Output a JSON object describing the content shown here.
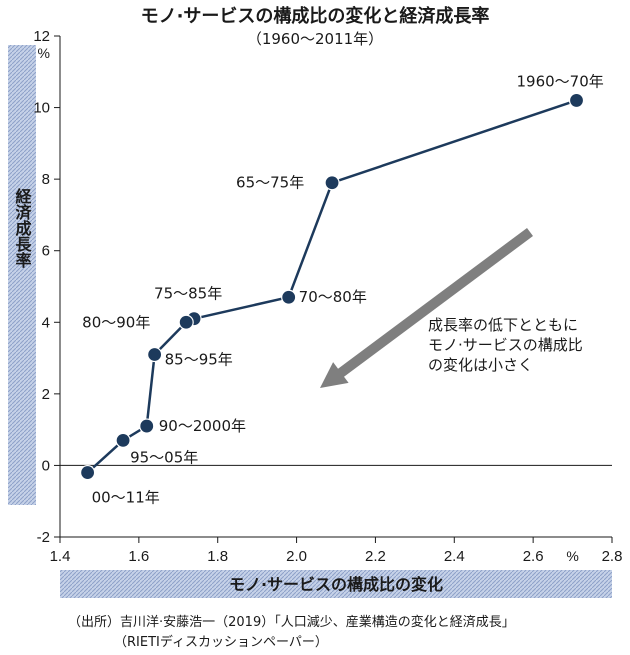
{
  "title": "モノ·サービスの構成比の変化と経済成長率",
  "subtitle": "（1960〜2011年）",
  "colors": {
    "marker": "#1d3a5c",
    "line": "#1d3a5c",
    "arrow": "#7f7f7f",
    "band": "#aab9d6"
  },
  "chart_data": {
    "type": "scatter",
    "xlabel": "モノ·サービスの構成比の変化",
    "ylabel": "経済成長率",
    "x_unit": "%",
    "y_unit": "%",
    "xlim": [
      1.4,
      2.8
    ],
    "ylim": [
      -2,
      12
    ],
    "x_ticks": [
      "1.4",
      "1.6",
      "1.8",
      "2.0",
      "2.2",
      "2.4",
      "2.6",
      "2.8"
    ],
    "y_ticks": [
      "-2",
      "0",
      "2",
      "4",
      "6",
      "8",
      "10",
      "12"
    ],
    "points": [
      {
        "label": "1960〜70年",
        "x": 2.71,
        "y": 10.2
      },
      {
        "label": "65〜75年",
        "x": 2.09,
        "y": 7.9
      },
      {
        "label": "70〜80年",
        "x": 1.98,
        "y": 4.7
      },
      {
        "label": "75〜85年",
        "x": 1.74,
        "y": 4.1
      },
      {
        "label": "80〜90年",
        "x": 1.72,
        "y": 4.0
      },
      {
        "label": "85〜95年",
        "x": 1.64,
        "y": 3.1
      },
      {
        "label": "90〜2000年",
        "x": 1.62,
        "y": 1.1
      },
      {
        "label": "95〜05年",
        "x": 1.56,
        "y": 0.7
      },
      {
        "label": "00〜11年",
        "x": 1.47,
        "y": -0.2
      }
    ],
    "annotation": [
      "成長率の低下とともに",
      "モノ·サービスの構成比",
      "の変化は小さく"
    ]
  },
  "source": [
    "（出所）吉川洋·安藤浩一（2019）「人口減少、産業構造の変化と経済成長」",
    "（RIETIディスカッションペーパー）"
  ]
}
